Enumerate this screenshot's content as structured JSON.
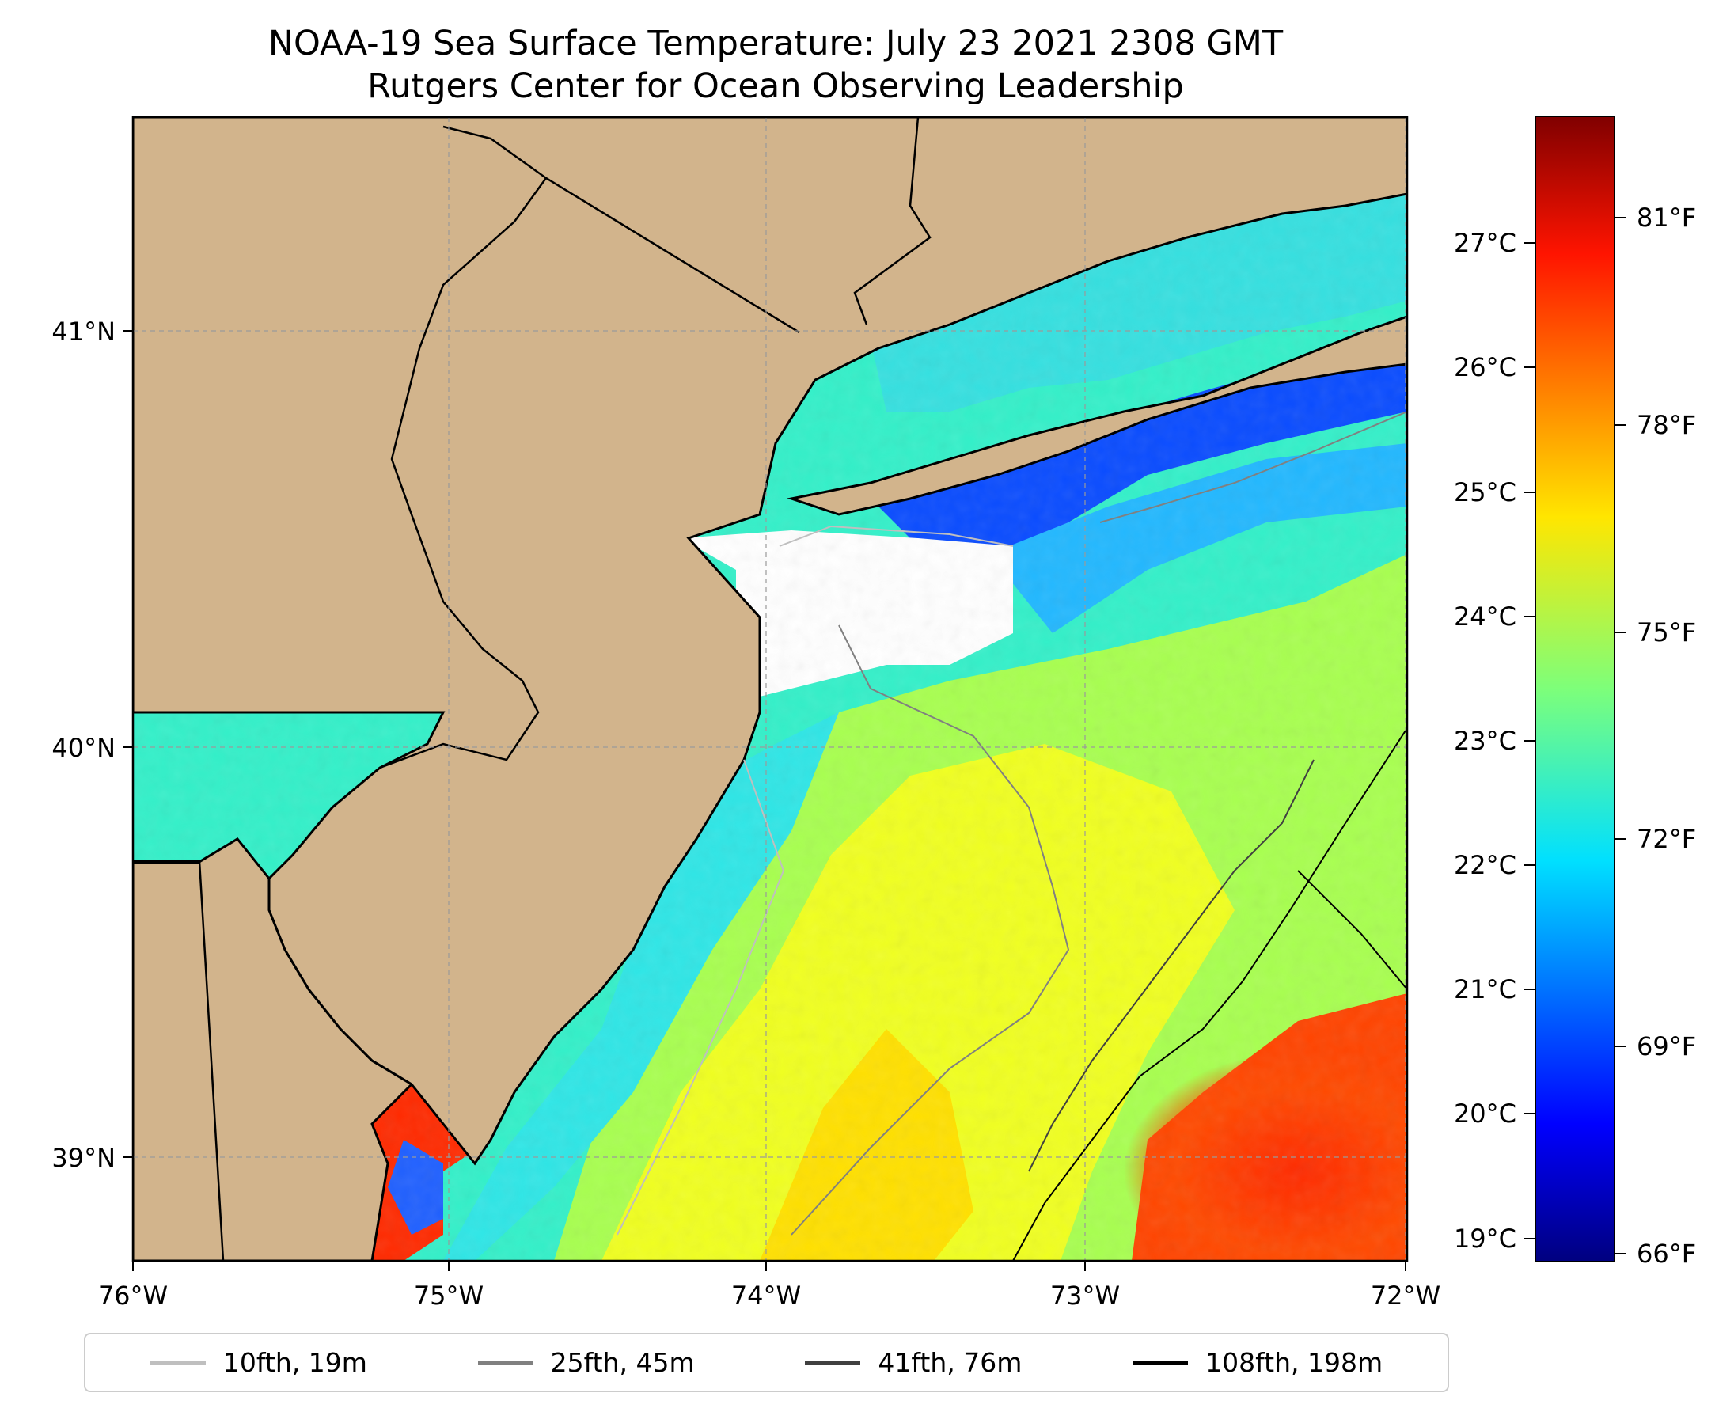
{
  "title": {
    "line1": "NOAA-19 Sea Surface Temperature: July 23 2021 2308 GMT",
    "line2": "Rutgers Center for Ocean Observing Leadership"
  },
  "map": {
    "lon_range": [
      -76,
      -72
    ],
    "lat_range": [
      38.83,
      41.58
    ],
    "x_ticks": [
      "76°W",
      "75°W",
      "74°W",
      "73°W",
      "72°W"
    ],
    "y_ticks": [
      "41°N",
      "40°N",
      "39°N"
    ],
    "land_color": "#d2b48c",
    "gridlines": true,
    "colormap": "jet",
    "regions": {
      "new_york_bight_no_data": "white",
      "long_island_sound": "cyan-green, ~72°F",
      "nearshore_long_island": "blue, ~68–69°F",
      "mid_shelf": "yellow, ~75–77°F",
      "offshore_southeast": "red-orange, ~80–81°F",
      "delaware_bay": "red, ~80°F"
    }
  },
  "colorbar": {
    "celsius_ticks": [
      "27°C",
      "26°C",
      "25°C",
      "24°C",
      "23°C",
      "22°C",
      "21°C",
      "20°C",
      "19°C"
    ],
    "fahrenheit_ticks": [
      "81°F",
      "78°F",
      "75°F",
      "72°F",
      "69°F",
      "66°F"
    ],
    "min_f": 65.8,
    "max_f": 82.4
  },
  "legend": {
    "items": [
      {
        "label": "10fth, 19m",
        "color": "#bfbfbf"
      },
      {
        "label": "25fth, 45m",
        "color": "#808080"
      },
      {
        "label": "41fth, 76m",
        "color": "#404040"
      },
      {
        "label": "108fth, 198m",
        "color": "#000000"
      }
    ]
  }
}
